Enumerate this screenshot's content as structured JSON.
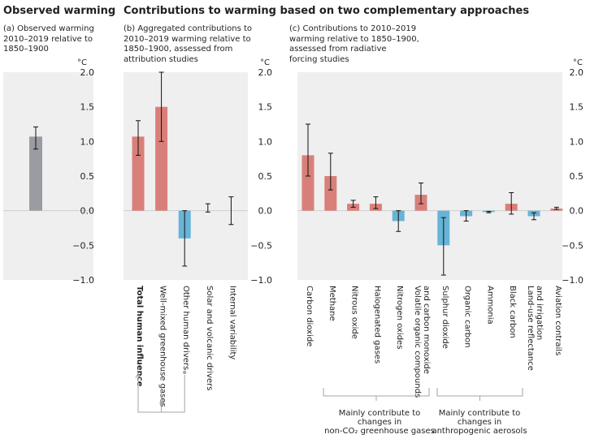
{
  "headers": {
    "left": "Observed warming",
    "right": "Contributions to warming based on two complementary approaches"
  },
  "panels": {
    "a": {
      "lines": [
        "(a) Observed warming",
        "2010–2019 relative to",
        "1850–1900"
      ]
    },
    "b": {
      "lines": [
        "(b) Aggregated contributions to",
        "2010–2019 warming relative to",
        "1850–1900, assessed from",
        "attribution studies"
      ]
    },
    "c": {
      "lines": [
        "(c) Contributions to 2010–2019",
        "warming relative to 1850–1900,",
        "assessed from radiative",
        "forcing studies"
      ]
    }
  },
  "groups": {
    "ghg": [
      "Mainly contribute to",
      "changes in",
      "non-CO₂ greenhouse gases"
    ],
    "aerosols": [
      "Mainly contribute to",
      "changes in",
      "anthropogenic aerosols"
    ]
  },
  "colors": {
    "observed": "#9a9ca1",
    "warming": "#d97f7a",
    "cooling": "#67b4d6",
    "panel_bg": "#efefef"
  },
  "chart_data": [
    {
      "type": "bar",
      "panel": "a",
      "unit": "°C",
      "ylim": [
        -1.0,
        2.0
      ],
      "ticks": [
        "2.0",
        "1.5",
        "1.0",
        "0.5",
        "0.0",
        "−0.5",
        "−1.0"
      ],
      "categories": [
        ""
      ],
      "values": [
        1.07
      ],
      "error_low": [
        0.89
      ],
      "error_high": [
        1.21
      ],
      "colors": [
        "observed"
      ]
    },
    {
      "type": "bar",
      "panel": "b",
      "unit": "°C",
      "ylim": [
        -1.0,
        2.0
      ],
      "ticks": [
        "2.0",
        "1.5",
        "1.0",
        "0.5",
        "0.0",
        "−0.5",
        "−1.0"
      ],
      "categories": [
        "Total human influence",
        "Well-mixed greenhouse gases",
        "Other human drivers",
        "Solar and volcanic drivers",
        "Internal variability"
      ],
      "values": [
        1.07,
        1.5,
        -0.4,
        0.0,
        0.0
      ],
      "error_low": [
        0.8,
        1.0,
        -0.8,
        -0.02,
        -0.2
      ],
      "error_high": [
        1.3,
        2.0,
        0.0,
        0.1,
        0.2
      ],
      "colors": [
        "warming",
        "warming",
        "cooling",
        "warming",
        "warming"
      ]
    },
    {
      "type": "bar",
      "panel": "c",
      "unit": "°C",
      "ylim": [
        -1.0,
        2.0
      ],
      "ticks": [
        "2.0",
        "1.5",
        "1.0",
        "0.5",
        "0.0",
        "−0.5",
        "−1.0"
      ],
      "categories": [
        "Carbon dioxide",
        "Methane",
        "Nitrous oxide",
        "Halogenated gases",
        "Nitrogen oxides",
        "Volatile organic compounds and carbon monoxide",
        "Sulphur dioxide",
        "Organic carbon",
        "Ammonia",
        "Black carbon",
        "Land-use reflectance and irrigation",
        "Aviation contrails"
      ],
      "values": [
        0.8,
        0.5,
        0.1,
        0.1,
        -0.15,
        0.23,
        -0.5,
        -0.08,
        -0.02,
        0.1,
        -0.08,
        0.03
      ],
      "error_low": [
        0.5,
        0.3,
        0.05,
        0.03,
        -0.3,
        0.1,
        -0.93,
        -0.15,
        -0.03,
        -0.05,
        -0.13,
        0.02
      ],
      "error_high": [
        1.25,
        0.83,
        0.15,
        0.2,
        0.0,
        0.4,
        -0.1,
        0.0,
        -0.01,
        0.26,
        -0.03,
        0.05
      ],
      "colors": [
        "warming",
        "warming",
        "warming",
        "warming",
        "cooling",
        "warming",
        "cooling",
        "cooling",
        "cooling",
        "warming",
        "cooling",
        "warming"
      ]
    }
  ]
}
